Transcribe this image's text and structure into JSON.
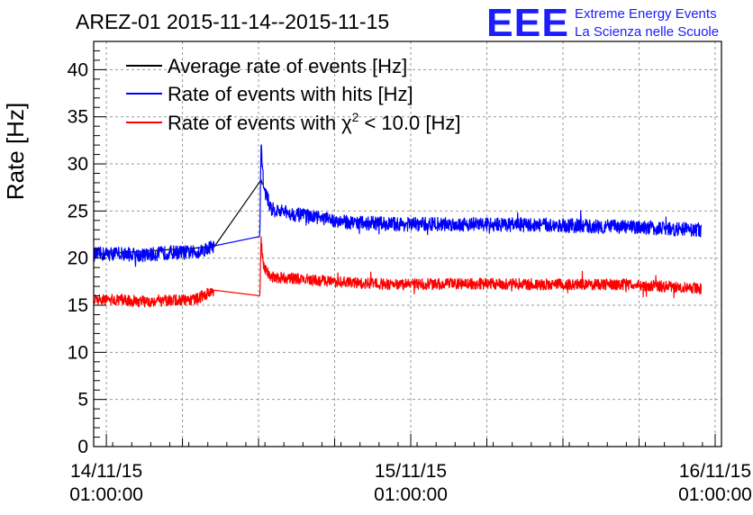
{
  "header": {
    "title": "AREZ-01 2015-11-14--2015-11-15",
    "logo_text": "EEE",
    "org_line1": "Extreme Energy Events",
    "org_line2": "La Scienza nelle Scuole"
  },
  "colors": {
    "average": "#000000",
    "hits": "#0000ff",
    "chi2": "#ff0000",
    "grid": "#9a9a9a",
    "logo": "#1c1cff"
  },
  "chart_data": {
    "type": "line",
    "title": "AREZ-01 2015-11-14--2015-11-15",
    "xlabel": "",
    "ylabel": "Rate [Hz]",
    "ylim": [
      0,
      43
    ],
    "xlim": [
      "14/11/15 00:00:00",
      "16/11/15 01:30:00"
    ],
    "yticks": [
      "0",
      "5",
      "10",
      "15",
      "20",
      "25",
      "30",
      "35",
      "40"
    ],
    "xticks": [
      {
        "date": "14/11/15",
        "time": "01:00:00",
        "hours": 1
      },
      {
        "date": "15/11/15",
        "time": "01:00:00",
        "hours": 25
      },
      {
        "date": "16/11/15",
        "time": "01:00:00",
        "hours": 49
      }
    ],
    "grid": true,
    "legend_position": "top-left",
    "x_units": "hours since 14/11/15 00:00:00",
    "series": [
      {
        "name": "Average rate of events [Hz]",
        "color": "#000000",
        "points": [
          [
            0.0,
            20.4
          ],
          [
            9.5,
            21.2
          ],
          [
            13.2,
            28.3
          ],
          [
            13.3,
            27.8
          ]
        ]
      },
      {
        "name": "Rate of events with hits [Hz]",
        "color": "#0000ff",
        "noise": 0.75,
        "points": [
          [
            0.0,
            20.4
          ],
          [
            2.0,
            20.5
          ],
          [
            4.0,
            20.3
          ],
          [
            6.0,
            20.6
          ],
          [
            8.0,
            20.6
          ],
          [
            9.5,
            21.3
          ],
          [
            13.1,
            22.3
          ],
          [
            13.2,
            32.2
          ],
          [
            13.4,
            27.5
          ],
          [
            14.0,
            25.2
          ],
          [
            16.0,
            24.6
          ],
          [
            18.0,
            24.2
          ],
          [
            20.0,
            23.8
          ],
          [
            24.0,
            23.6
          ],
          [
            30.0,
            23.6
          ],
          [
            36.0,
            23.5
          ],
          [
            42.0,
            23.3
          ],
          [
            47.9,
            23.0
          ]
        ]
      },
      {
        "name": "Rate of events with χ² < 10.0 [Hz]",
        "label_main": "Rate of events with",
        "label_sym": "χ",
        "label_sup": "2",
        "label_tail": "< 10.0 [Hz]",
        "color": "#ff0000",
        "noise": 0.6,
        "points": [
          [
            0.0,
            15.5
          ],
          [
            2.0,
            15.6
          ],
          [
            4.0,
            15.4
          ],
          [
            6.0,
            15.5
          ],
          [
            8.0,
            15.6
          ],
          [
            9.5,
            16.6
          ],
          [
            13.1,
            16.0
          ],
          [
            13.2,
            21.8
          ],
          [
            13.4,
            19.0
          ],
          [
            14.0,
            18.0
          ],
          [
            16.0,
            17.8
          ],
          [
            18.0,
            17.6
          ],
          [
            20.0,
            17.4
          ],
          [
            24.0,
            17.2
          ],
          [
            30.0,
            17.3
          ],
          [
            36.0,
            17.2
          ],
          [
            42.0,
            17.2
          ],
          [
            47.9,
            16.8
          ]
        ]
      }
    ]
  }
}
